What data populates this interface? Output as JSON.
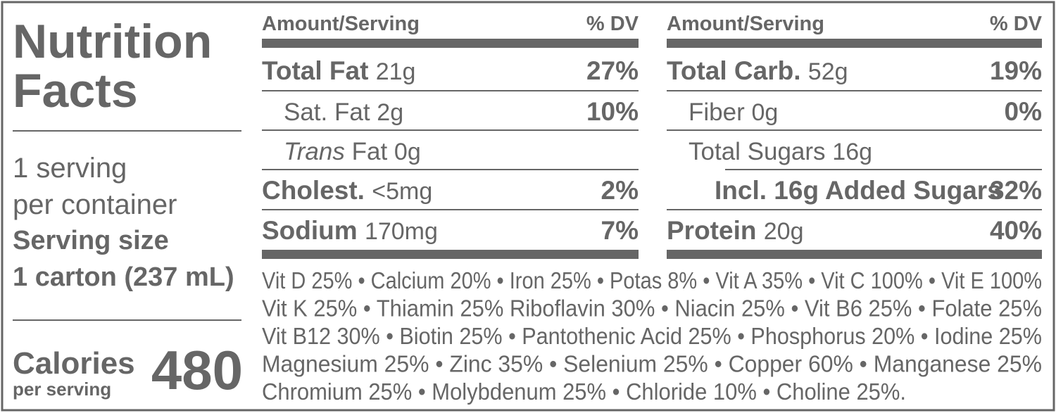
{
  "left": {
    "title": [
      "Nutrition",
      "Facts"
    ],
    "servings": [
      "1 serving",
      "per container"
    ],
    "serving_size_label": "Serving size",
    "serving_size": "1 carton (237 mL)",
    "calories_label": "Calories",
    "calories_sub": "per serving",
    "calories": 480
  },
  "tables": [
    {
      "header": {
        "amount": "Amount/Serving",
        "dv": "% DV"
      },
      "rows": [
        {
          "label": "Total Fat",
          "amount": "21g",
          "dv": "27%"
        },
        {
          "label": "Sat. Fat",
          "amount": "2g",
          "dv": "10%"
        },
        {
          "label_italic": "Trans",
          "label": "Fat",
          "amount": "0g"
        },
        {
          "label": "Cholest.",
          "amount": "<5mg",
          "dv": "2%"
        },
        {
          "label": "Sodium",
          "amount": "170mg",
          "dv": "7%"
        }
      ]
    },
    {
      "header": {
        "amount": "Amount/Serving",
        "dv": "% DV"
      },
      "rows": [
        {
          "label": "Total Carb.",
          "amount": "52g",
          "dv": "19%"
        },
        {
          "label": "Fiber",
          "amount": "0g",
          "dv": "0%"
        },
        {
          "label": "Total Sugars",
          "amount": "16g"
        },
        {
          "label": "Incl. 16g Added Sugars",
          "dv": "32%"
        },
        {
          "label": "Protein",
          "amount": "20g",
          "dv": "40%"
        }
      ]
    }
  ],
  "vitamins": [
    "Vit D 25% • Calcium 20% • Iron 25% • Potas 8% • Vit A 35% • Vit C 100% • Vit E 100%",
    "Vit K 25% • Thiamin 25% Riboflavin 30% • Niacin 25% • Vit B6 25% • Folate 25%",
    "Vit B12 30% • Biotin 25% • Pantothenic Acid 25% • Phosphorus 20% • Iodine 25%",
    "Magnesium 25% • Zinc 35% • Selenium 25% • Copper 60% • Manganese 25%",
    "Chromium 25% • Molybdenum 25% • Chloride 10% • Choline 25%."
  ]
}
